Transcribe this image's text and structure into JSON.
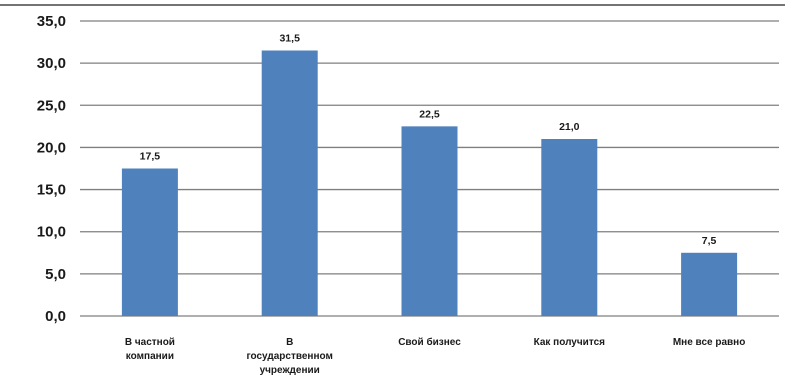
{
  "chart_data": {
    "type": "bar",
    "categories": [
      [
        "В частной",
        "компании"
      ],
      [
        "В",
        "государственном",
        "учреждении"
      ],
      [
        "Свой бизнес"
      ],
      [
        "Как получится"
      ],
      [
        "Мне все равно"
      ]
    ],
    "values": [
      17.5,
      31.5,
      22.5,
      21.0,
      7.5
    ],
    "value_labels": [
      "17,5",
      "31,5",
      "22,5",
      "21,0",
      "7,5"
    ],
    "y_ticks": [
      "0,0",
      "5,0",
      "10,0",
      "15,0",
      "20,0",
      "25,0",
      "30,0",
      "35,0"
    ],
    "ylim": [
      0,
      35
    ],
    "grid": true,
    "legend": "none",
    "colors": {
      "bar": "#4f81bd",
      "grid": "#7f7f7f"
    }
  }
}
